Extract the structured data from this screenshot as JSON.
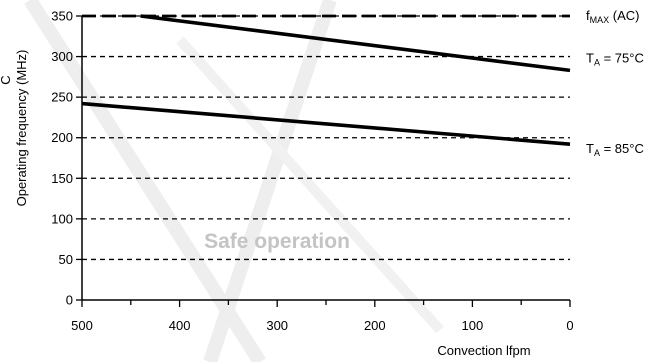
{
  "chart_data": {
    "type": "line",
    "xlabel": "Convection lfpm",
    "ylabel": "Operating frequency (MHz)",
    "x_ticks": [
      "500",
      "400",
      "300",
      "200",
      "100",
      "0"
    ],
    "y_ticks": [
      "0",
      "50",
      "100",
      "150",
      "200",
      "250",
      "300",
      "350"
    ],
    "xlim": [
      500,
      0
    ],
    "ylim": [
      0,
      350
    ],
    "x_reversed": true,
    "grid": "horizontal-dashed",
    "series": [
      {
        "name": "fMAX (AC)",
        "label_main": "f",
        "label_sub": "MAX",
        "label_rest": " (AC)",
        "x": [
          500,
          0
        ],
        "y": [
          350,
          350
        ],
        "dashed": true
      },
      {
        "name": "TA = 75°C",
        "label_main": "T",
        "label_sub": "A",
        "label_rest": " = 75°C",
        "x": [
          440,
          0
        ],
        "y": [
          350,
          283
        ],
        "dashed": false
      },
      {
        "name": "TA = 85°C",
        "label_main": "T",
        "label_sub": "A",
        "label_rest": " = 85°C",
        "x": [
          500,
          0
        ],
        "y": [
          242,
          192
        ],
        "dashed": false
      }
    ],
    "annotations": [
      {
        "text": "Safe operation",
        "x": 250,
        "y": 75
      }
    ],
    "clipped_left_text": "C"
  }
}
